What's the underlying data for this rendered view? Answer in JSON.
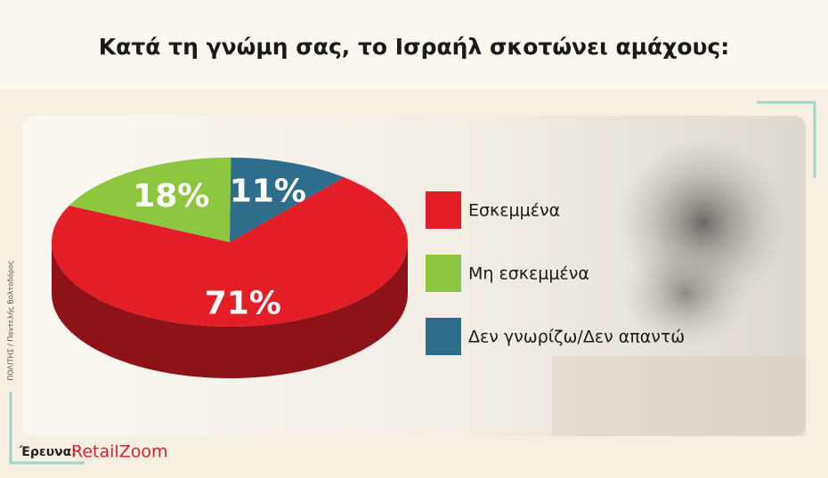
{
  "chart_data": {
    "type": "pie",
    "title": "Κατά τη γνώμη σας, το Ισραήλ σκοτώνει αμάχους:",
    "categories": [
      "Εσκεμμένα",
      "Μη εσκεμμένα",
      "Δεν γνωρίζω/Δεν απαντώ"
    ],
    "values": [
      71,
      18,
      11
    ],
    "value_labels": [
      "71%",
      "18%",
      "11%"
    ],
    "colors": [
      "#e31e26",
      "#8dc63f",
      "#2f6d8c"
    ],
    "source_label": "Έρευνα:",
    "source": "RetailZoom",
    "credit": "ΠΟΛΙΤΗΣ / Παντελής Βολτοδόρος"
  }
}
